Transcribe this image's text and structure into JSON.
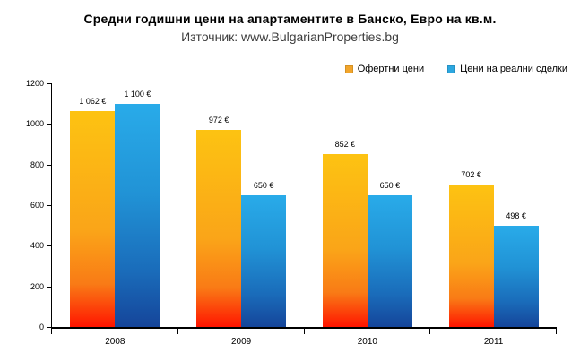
{
  "title": "Средни годишни цени на апартаментите в Банско, Евро на кв.м.",
  "subtitle": "Източник: www.BulgarianProperties.bg",
  "legend": [
    {
      "label": "Офертни цени",
      "color": "#F2A52B"
    },
    {
      "label": "Цени на реални сделки",
      "color": "#2CA7E0"
    }
  ],
  "colors": {
    "background": "#FFFFFF",
    "axis": "#000000",
    "offer_bar_top": "#FDC312",
    "offer_bar_bottom": "#FF1500",
    "deal_bar_top": "#29ABE9",
    "deal_bar_bottom": "#15459A"
  },
  "chart_data": {
    "type": "bar",
    "title": "Средни годишни цени на апартаментите в Банско, Евро на кв.м.",
    "subtitle": "Източник: www.BulgarianProperties.bg",
    "categories": [
      "2008",
      "2009",
      "2010",
      "2011"
    ],
    "series": [
      {
        "name": "Офертни цени",
        "values": [
          1062,
          972,
          852,
          702
        ],
        "labels": [
          "1 062 €",
          "972 €",
          "852 €",
          "702 €"
        ],
        "gradient": [
          "#FDC312 0%",
          "#FAA518 55%",
          "#F97B16 80%",
          "#FF1500 100%"
        ]
      },
      {
        "name": "Цени на реални сделки",
        "values": [
          1100,
          650,
          650,
          498
        ],
        "labels": [
          "1 100 €",
          "650 €",
          "650 €",
          "498 €"
        ],
        "gradient": [
          "#29ABE9 0%",
          "#2193D6 40%",
          "#1A6CBA 75%",
          "#15459A 100%"
        ]
      }
    ],
    "xlabel": "",
    "ylabel": "",
    "ylim": [
      0,
      1200
    ],
    "yticks": [
      0,
      200,
      400,
      600,
      800,
      1000,
      1200
    ],
    "grid": false,
    "legend_position": "top-right",
    "currency_suffix": "€"
  }
}
